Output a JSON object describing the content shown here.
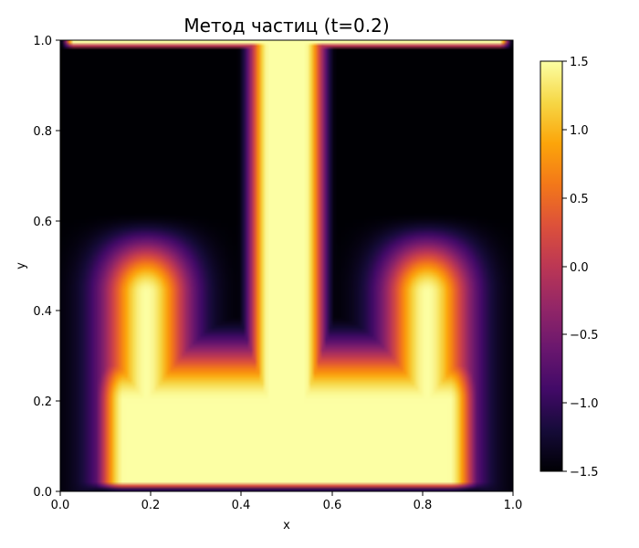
{
  "chart_data": {
    "type": "heatmap",
    "title": "Метод частиц (t=0.2)",
    "xlabel": "x",
    "ylabel": "y",
    "xlim": [
      0.0,
      1.0
    ],
    "ylim": [
      0.0,
      1.0
    ],
    "x_ticks": [
      "0.0",
      "0.2",
      "0.4",
      "0.6",
      "0.8",
      "1.0"
    ],
    "y_ticks": [
      "0.0",
      "0.2",
      "0.4",
      "0.6",
      "0.8",
      "1.0"
    ],
    "grid": false,
    "colormap": "inferno",
    "colorbar": {
      "range": [
        -1.5,
        1.5
      ],
      "ticks": [
        "−1.5",
        "−1.0",
        "−0.5",
        "0.0",
        "0.5",
        "1.0",
        "1.5"
      ],
      "position": "right"
    },
    "field_description": "symmetric mushroom-shaped plume: high values (~1.5) in a central vertical stem (x≈0.45–0.55) and a wide bottom pool with upward lobes near x≈0.17 and x≈0.83 at y≈0.5; low values (~-1.5) in corners and outer left/right regions",
    "key_values": [
      {
        "region": "central stem",
        "x": 0.5,
        "y": 0.8,
        "value": 1.5
      },
      {
        "region": "bottom pool",
        "x": 0.5,
        "y": 0.25,
        "value": 1.45
      },
      {
        "region": "left lobe",
        "x": 0.17,
        "y": 0.5,
        "value": 1.05
      },
      {
        "region": "right lobe",
        "x": 0.83,
        "y": 0.5,
        "value": 1.05
      },
      {
        "region": "top-left corner",
        "x": 0.05,
        "y": 0.9,
        "value": -1.5
      },
      {
        "region": "top-right corner",
        "x": 0.95,
        "y": 0.9,
        "value": -1.5
      },
      {
        "region": "left wall",
        "x": 0.03,
        "y": 0.4,
        "value": -1.45
      },
      {
        "region": "right wall",
        "x": 0.97,
        "y": 0.4,
        "value": -1.45
      },
      {
        "region": "upper inner left",
        "x": 0.3,
        "y": 0.65,
        "value": -1.2
      },
      {
        "region": "upper inner right",
        "x": 0.7,
        "y": 0.65,
        "value": -1.2
      }
    ]
  }
}
